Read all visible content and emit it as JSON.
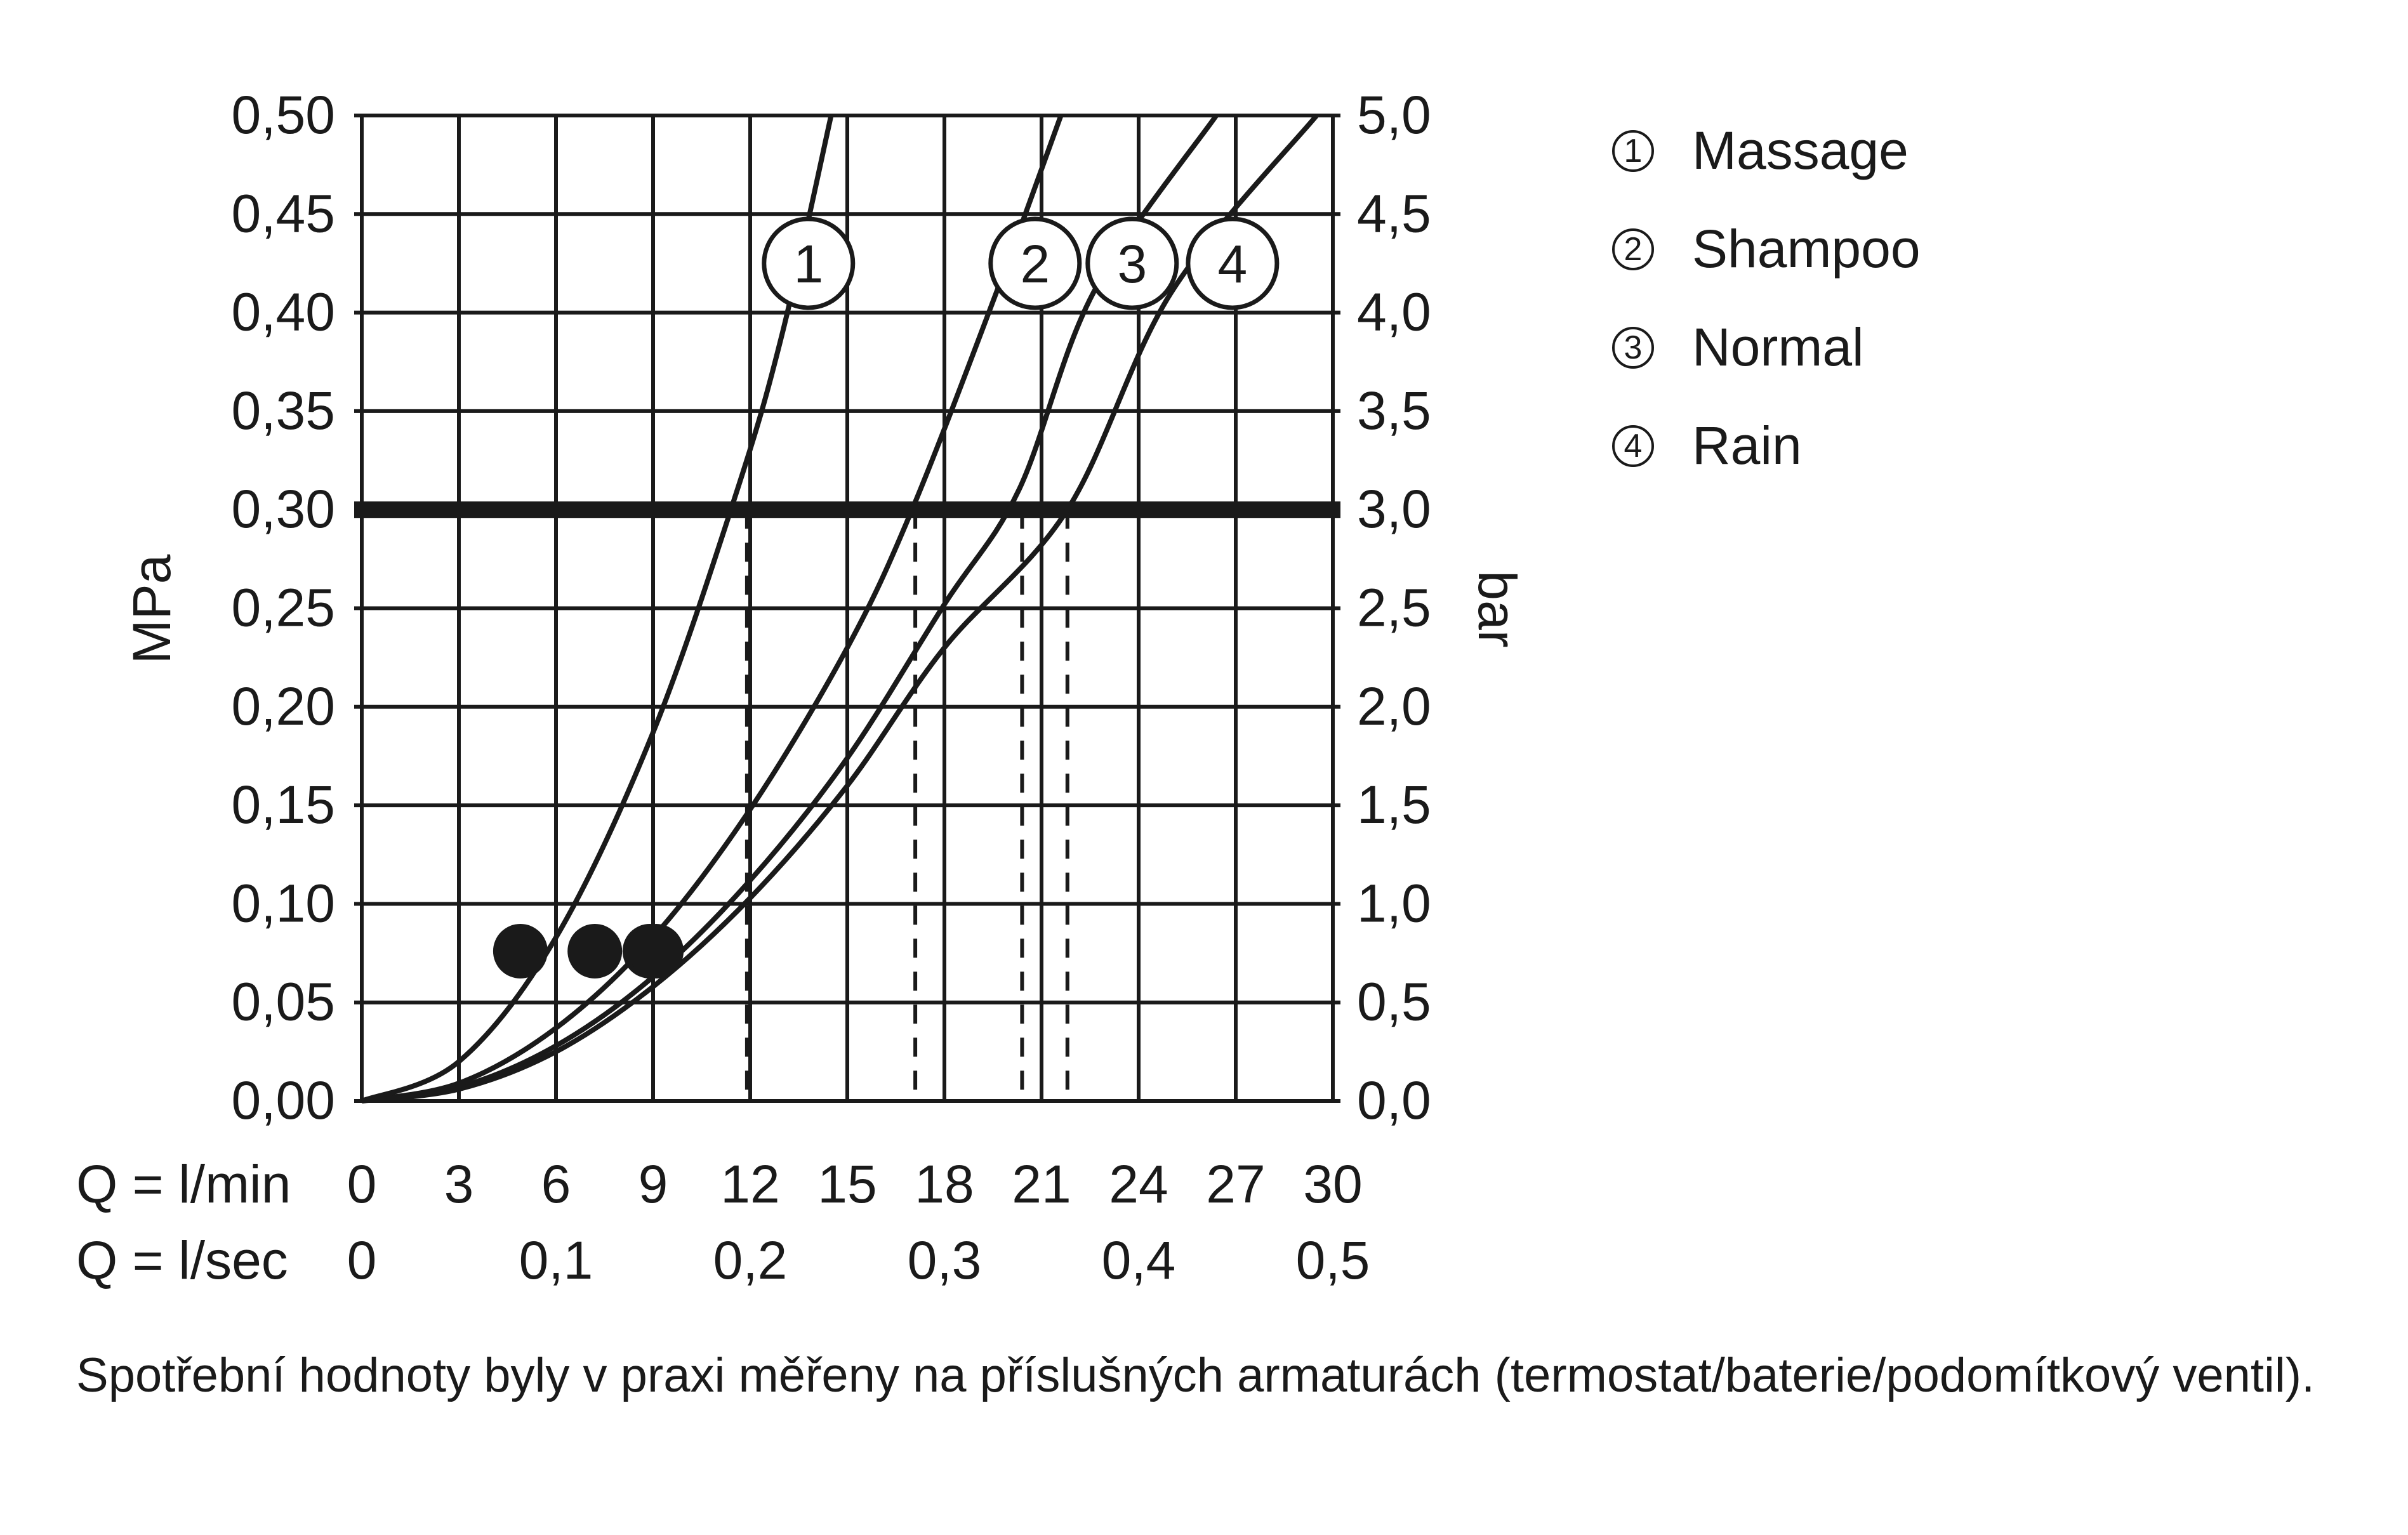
{
  "chart_data": {
    "type": "line",
    "y_left_label": "MPa",
    "y_right_label": "bar",
    "y_left_ticks": [
      "0,00",
      "0,05",
      "0,10",
      "0,15",
      "0,20",
      "0,25",
      "0,30",
      "0,35",
      "0,40",
      "0,45",
      "0,50"
    ],
    "y_right_ticks": [
      "0,0",
      "0,5",
      "1,0",
      "1,5",
      "2,0",
      "2,5",
      "3,0",
      "3,5",
      "4,0",
      "4,5",
      "5,0"
    ],
    "ylim": [
      0,
      0.5
    ],
    "xlim": [
      0,
      30
    ],
    "x_row1_label": "Q = l/min",
    "x_row1_ticks": [
      "0",
      "3",
      "6",
      "9",
      "12",
      "15",
      "18",
      "21",
      "24",
      "27",
      "30"
    ],
    "x_row2_label": "Q = l/sec",
    "x_row2_ticks": [
      {
        "x": 0,
        "label": "0"
      },
      {
        "x": 6,
        "label": "0,1"
      },
      {
        "x": 12,
        "label": "0,2"
      },
      {
        "x": 18,
        "label": "0,3"
      },
      {
        "x": 24,
        "label": "0,4"
      },
      {
        "x": 30,
        "label": "0,5"
      }
    ],
    "reference_line": {
      "y": 0.3
    },
    "series": [
      {
        "id": "1",
        "name": "Massage",
        "points": [
          [
            0,
            0
          ],
          [
            3,
            0.02
          ],
          [
            6,
            0.083
          ],
          [
            9,
            0.187
          ],
          [
            11.6,
            0.31
          ],
          [
            13,
            0.39
          ],
          [
            14.5,
            0.5
          ]
        ],
        "marker": [
          4.9,
          0.076
        ],
        "drop_x": 11.9,
        "label_pos": [
          13.8,
          0.425
        ]
      },
      {
        "id": "2",
        "name": "Shampoo",
        "points": [
          [
            0,
            0
          ],
          [
            3,
            0.009
          ],
          [
            6,
            0.037
          ],
          [
            9,
            0.083
          ],
          [
            12,
            0.148
          ],
          [
            15,
            0.23
          ],
          [
            17,
            0.3
          ],
          [
            19.6,
            0.41
          ],
          [
            21.6,
            0.5
          ]
        ],
        "marker": [
          7.2,
          0.076
        ],
        "drop_x": 17.1,
        "label_pos": [
          20.8,
          0.425
        ]
      },
      {
        "id": "3",
        "name": "Normal",
        "points": [
          [
            0,
            0
          ],
          [
            3,
            0.007
          ],
          [
            6,
            0.028
          ],
          [
            9,
            0.063
          ],
          [
            12,
            0.112
          ],
          [
            15,
            0.174
          ],
          [
            18,
            0.252
          ],
          [
            20.3,
            0.31
          ],
          [
            22.6,
            0.41
          ],
          [
            26.4,
            0.5
          ]
        ],
        "marker": [
          8.9,
          0.076
        ],
        "drop_x": 20.4,
        "label_pos": [
          23.8,
          0.425
        ]
      },
      {
        "id": "4",
        "name": "Rain",
        "points": [
          [
            0,
            0
          ],
          [
            3,
            0.006
          ],
          [
            6,
            0.025
          ],
          [
            9,
            0.058
          ],
          [
            12,
            0.103
          ],
          [
            15,
            0.16
          ],
          [
            18,
            0.23
          ],
          [
            21.8,
            0.3
          ],
          [
            25,
            0.41
          ],
          [
            29.5,
            0.5
          ]
        ],
        "marker": [
          9.1,
          0.076
        ],
        "drop_x": 21.8,
        "label_pos": [
          26.9,
          0.425
        ]
      }
    ]
  },
  "legend": [
    {
      "num": "1",
      "label": "Massage"
    },
    {
      "num": "2",
      "label": "Shampoo"
    },
    {
      "num": "3",
      "label": "Normal"
    },
    {
      "num": "4",
      "label": "Rain"
    }
  ],
  "caption": "Spotřební hodnoty byly v praxi měřeny na příslušných armaturách (termostat/baterie/podomítkový ventil)."
}
